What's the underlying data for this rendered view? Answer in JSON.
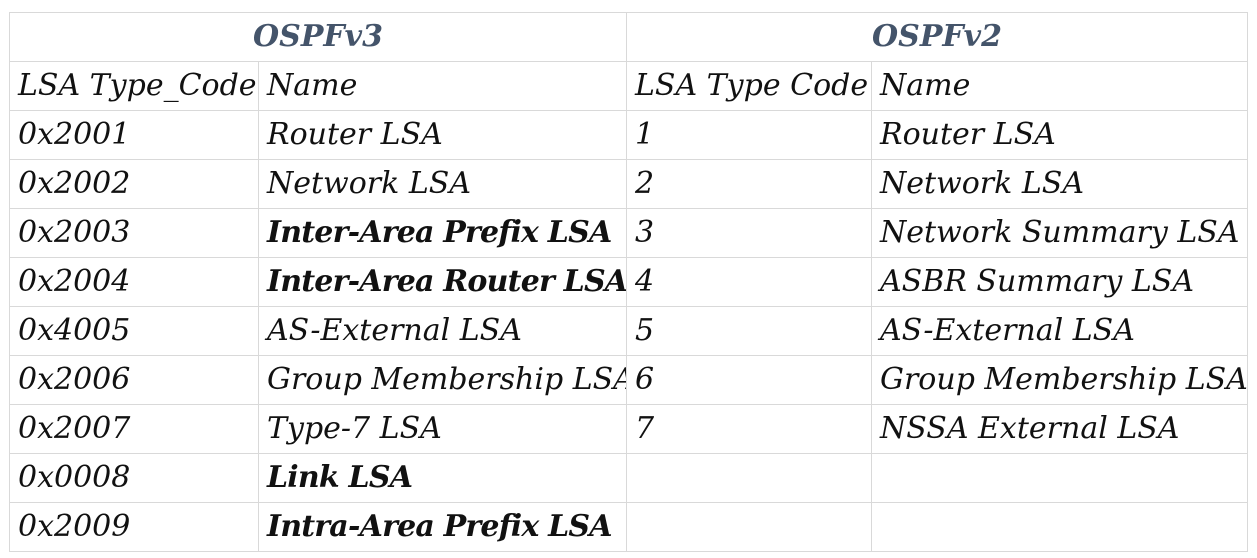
{
  "groups": {
    "v3": "OSPFv3",
    "v2": "OSPFv2"
  },
  "colors": {
    "group_title": "#44546a",
    "grid_line": "#d9d9d9",
    "text": "#111111"
  },
  "headers": {
    "v3_code": "LSA Type_Code",
    "v3_name": "Name",
    "v2_code": "LSA Type Code",
    "v2_name": "Name"
  },
  "rows": [
    {
      "v3_code": "0x2001",
      "v3_name": "Router LSA",
      "v3_bold": false,
      "v2_code": "1",
      "v2_name": "Router LSA"
    },
    {
      "v3_code": "0x2002",
      "v3_name": "Network LSA",
      "v3_bold": false,
      "v2_code": "2",
      "v2_name": "Network LSA"
    },
    {
      "v3_code": "0x2003",
      "v3_name": "Inter-Area Prefix LSA",
      "v3_bold": true,
      "v2_code": "3",
      "v2_name": "Network Summary LSA"
    },
    {
      "v3_code": "0x2004",
      "v3_name": "Inter-Area Router LSA",
      "v3_bold": true,
      "v2_code": "4",
      "v2_name": "ASBR Summary LSA"
    },
    {
      "v3_code": "0x4005",
      "v3_name": "AS-External LSA",
      "v3_bold": false,
      "v2_code": "5",
      "v2_name": "AS-External LSA"
    },
    {
      "v3_code": "0x2006",
      "v3_name": "Group Membership LSA",
      "v3_bold": false,
      "v2_code": "6",
      "v2_name": "Group Membership LSA"
    },
    {
      "v3_code": "0x2007",
      "v3_name": "Type-7 LSA",
      "v3_bold": false,
      "v2_code": "7",
      "v2_name": "NSSA External LSA"
    },
    {
      "v3_code": "0x0008",
      "v3_name": "Link LSA",
      "v3_bold": true,
      "v2_code": "",
      "v2_name": ""
    },
    {
      "v3_code": "0x2009",
      "v3_name": "Intra-Area Prefix LSA",
      "v3_bold": true,
      "v2_code": "",
      "v2_name": ""
    }
  ]
}
